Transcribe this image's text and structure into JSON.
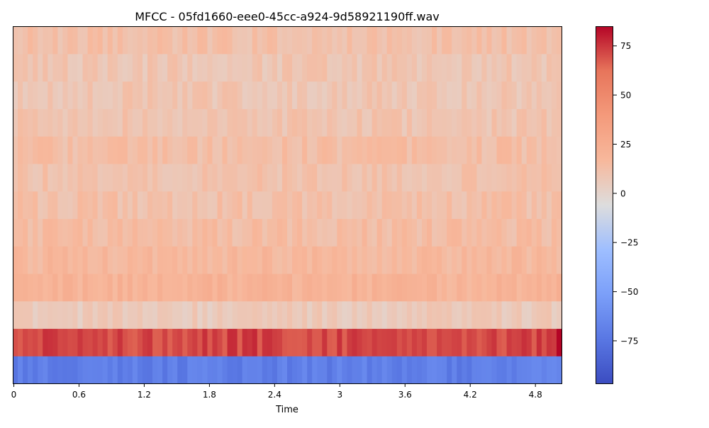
{
  "chart_data": {
    "type": "heatmap",
    "title": "MFCC - 05fd1660-eee0-45cc-a924-9d58921190ff.wav",
    "xlabel": "Time",
    "ylabel": "",
    "xlim": [
      0,
      5.05
    ],
    "x_ticks": [
      "0",
      "0.6",
      "1.2",
      "1.8",
      "2.4",
      "3",
      "3.6",
      "4.2",
      "4.8"
    ],
    "x_tick_values": [
      0,
      0.6,
      1.2,
      1.8,
      2.4,
      3.0,
      3.6,
      4.2,
      4.8
    ],
    "num_coefficients": 13,
    "num_frames": 110,
    "coefficient_means": [
      -70,
      72,
      6,
      20,
      17,
      14,
      12,
      11,
      13,
      10,
      9,
      9,
      12
    ],
    "colormap": "coolwarm",
    "colorbar": {
      "vmin": -97,
      "vmax": 85,
      "ticks": [
        75,
        50,
        25,
        0,
        -25,
        -50,
        -75
      ],
      "tick_labels": [
        "75",
        "50",
        "25",
        "0",
        "−25",
        "−50",
        "−75"
      ]
    }
  }
}
